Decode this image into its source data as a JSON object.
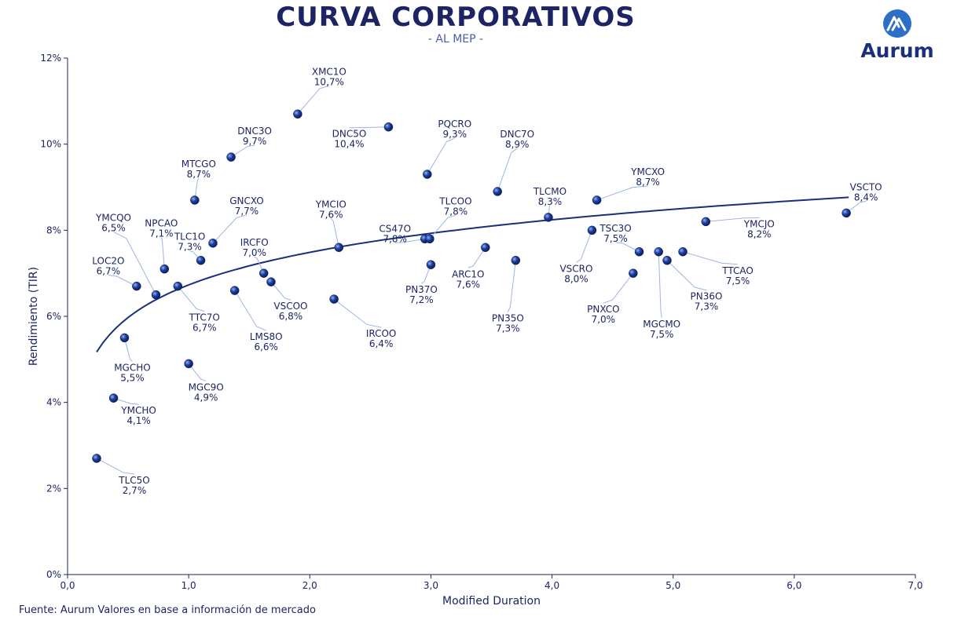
{
  "header": {
    "title": "CURVA CORPORATIVOS",
    "subtitle": "- AL MEP -"
  },
  "logo": {
    "text": "Aurum",
    "icon": "aurum-logo-icon",
    "color": "#2b6fc7"
  },
  "footer": {
    "source": "Fuente: Aurum Valores en base a información de mercado"
  },
  "chart_data": {
    "type": "scatter",
    "xlabel": "Modified Duration",
    "ylabel": "Rendimiento (TIR)",
    "xlim": [
      0,
      7
    ],
    "ylim": [
      0,
      12
    ],
    "x_ticks": [
      "0,0",
      "1,0",
      "2,0",
      "3,0",
      "4,0",
      "5,0",
      "6,0",
      "7,0"
    ],
    "y_ticks": [
      "0%",
      "2%",
      "4%",
      "6%",
      "8%",
      "10%",
      "12%"
    ],
    "grid": false,
    "point_color": "#1f3f9c",
    "curve_color": "#1c2f7a",
    "trendline": {
      "type": "logarithmic",
      "x_range": [
        0.24,
        6.45
      ],
      "samples": [
        [
          0.24,
          5.1
        ],
        [
          0.5,
          6.0
        ],
        [
          1.0,
          6.8
        ],
        [
          2.0,
          7.5
        ],
        [
          3.0,
          7.95
        ],
        [
          4.0,
          8.25
        ],
        [
          5.0,
          8.5
        ],
        [
          6.0,
          8.65
        ],
        [
          6.45,
          8.72
        ]
      ]
    },
    "points": [
      {
        "name": "XMC1O",
        "label": "10,7%",
        "x": 1.9,
        "y": 10.7
      },
      {
        "name": "DNC5O",
        "label": "10,4%",
        "x": 2.65,
        "y": 10.4
      },
      {
        "name": "DNC3O",
        "label": "9,7%",
        "x": 1.35,
        "y": 9.7
      },
      {
        "name": "PQCRO",
        "label": "9,3%",
        "x": 2.97,
        "y": 9.3
      },
      {
        "name": "DNC7O",
        "label": "8,9%",
        "x": 3.55,
        "y": 8.9
      },
      {
        "name": "MTCGO",
        "label": "8,7%",
        "x": 1.05,
        "y": 8.7
      },
      {
        "name": "YMCXO",
        "label": "8,7%",
        "x": 4.37,
        "y": 8.7
      },
      {
        "name": "TLCMO",
        "label": "8,3%",
        "x": 3.97,
        "y": 8.3
      },
      {
        "name": "VSCTO",
        "label": "8,4%",
        "x": 6.43,
        "y": 8.4
      },
      {
        "name": "YMCJO",
        "label": "8,2%",
        "x": 5.27,
        "y": 8.2
      },
      {
        "name": "VSCRO",
        "label": "8,0%",
        "x": 4.33,
        "y": 8.0
      },
      {
        "name": "CS47O",
        "label": "7,8%",
        "x": 2.95,
        "y": 7.8
      },
      {
        "name": "TLCOO",
        "label": "7,8%",
        "x": 2.99,
        "y": 7.8
      },
      {
        "name": "GNCXO",
        "label": "7,7%",
        "x": 1.2,
        "y": 7.7
      },
      {
        "name": "YMCIO",
        "label": "7,6%",
        "x": 2.24,
        "y": 7.6
      },
      {
        "name": "ARC1O",
        "label": "7,6%",
        "x": 3.45,
        "y": 7.6
      },
      {
        "name": "TSC3O",
        "label": "7,5%",
        "x": 4.72,
        "y": 7.5
      },
      {
        "name": "MGCMO",
        "label": "7,5%",
        "x": 4.88,
        "y": 7.5
      },
      {
        "name": "TTCAO",
        "label": "7,5%",
        "x": 5.08,
        "y": 7.5
      },
      {
        "name": "TLC1O",
        "label": "7,3%",
        "x": 1.1,
        "y": 7.3
      },
      {
        "name": "PN35O",
        "label": "7,3%",
        "x": 3.7,
        "y": 7.3
      },
      {
        "name": "PN36O",
        "label": "7,3%",
        "x": 4.95,
        "y": 7.3
      },
      {
        "name": "PN37O",
        "label": "7,2%",
        "x": 3.0,
        "y": 7.2
      },
      {
        "name": "NPCAO",
        "label": "7,1%",
        "x": 0.8,
        "y": 7.1
      },
      {
        "name": "IRCFO",
        "label": "7,0%",
        "x": 1.62,
        "y": 7.0
      },
      {
        "name": "PNXCO",
        "label": "7,0%",
        "x": 4.67,
        "y": 7.0
      },
      {
        "name": "VSCOO",
        "label": "6,8%",
        "x": 1.68,
        "y": 6.8
      },
      {
        "name": "LOC2O",
        "label": "6,7%",
        "x": 0.57,
        "y": 6.7
      },
      {
        "name": "TTC7O",
        "label": "6,7%",
        "x": 0.91,
        "y": 6.7
      },
      {
        "name": "LMS8O",
        "label": "6,6%",
        "x": 1.38,
        "y": 6.6
      },
      {
        "name": "YMCQO",
        "label": "6,5%",
        "x": 0.73,
        "y": 6.5
      },
      {
        "name": "IRCOO",
        "label": "6,4%",
        "x": 2.2,
        "y": 6.4
      },
      {
        "name": "MGCHO",
        "label": "5,5%",
        "x": 0.47,
        "y": 5.5
      },
      {
        "name": "MGC9O",
        "label": "4,9%",
        "x": 1.0,
        "y": 4.9
      },
      {
        "name": "YMCHO",
        "label": "4,1%",
        "x": 0.38,
        "y": 4.1
      },
      {
        "name": "TLC5O",
        "label": "2,7%",
        "x": 0.24,
        "y": 2.7
      }
    ]
  }
}
